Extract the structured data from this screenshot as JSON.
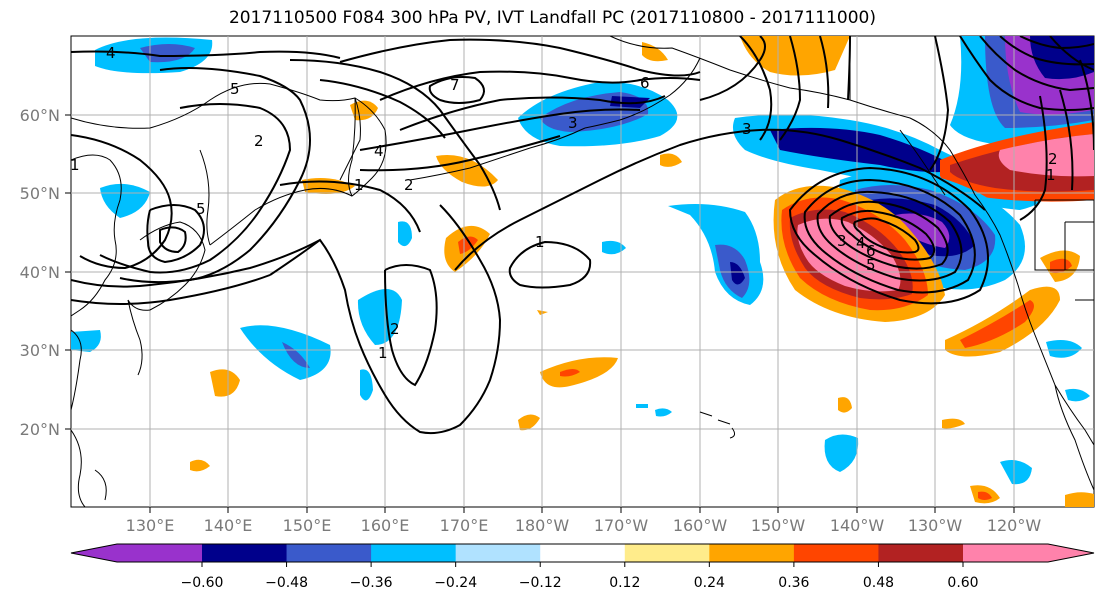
{
  "title": "2017110500 F084 300 hPa PV, IVT Landfall PC (2017110800 - 2017111000)",
  "lat_labels": [
    "60°N",
    "50°N",
    "40°N",
    "30°N",
    "20°N"
  ],
  "lon_labels": [
    "130°E",
    "140°E",
    "150°E",
    "160°E",
    "170°E",
    "180°W",
    "170°W",
    "160°W",
    "150°W",
    "140°W",
    "130°W",
    "120°W"
  ],
  "colorbar": {
    "colors": [
      "#9932CC",
      "#00008B",
      "#3A5ACB",
      "#00BFFF",
      "#B0E2FF",
      "#FFFFFF",
      "#FFEC8B",
      "#FFA500",
      "#FF4500",
      "#B22222",
      "#FF82AB"
    ],
    "tick_labels": [
      "−0.60",
      "−0.48",
      "−0.36",
      "−0.24",
      "−0.12",
      "0.12",
      "0.24",
      "0.36",
      "0.48",
      "0.60"
    ]
  },
  "contour_labels": [
    "4",
    "5",
    "7",
    "6",
    "3",
    "4",
    "2",
    "5",
    "1",
    "1",
    "2",
    "1",
    "2",
    "1",
    "3",
    "4",
    "5",
    "6",
    "2",
    "1",
    "1",
    "3"
  ]
}
